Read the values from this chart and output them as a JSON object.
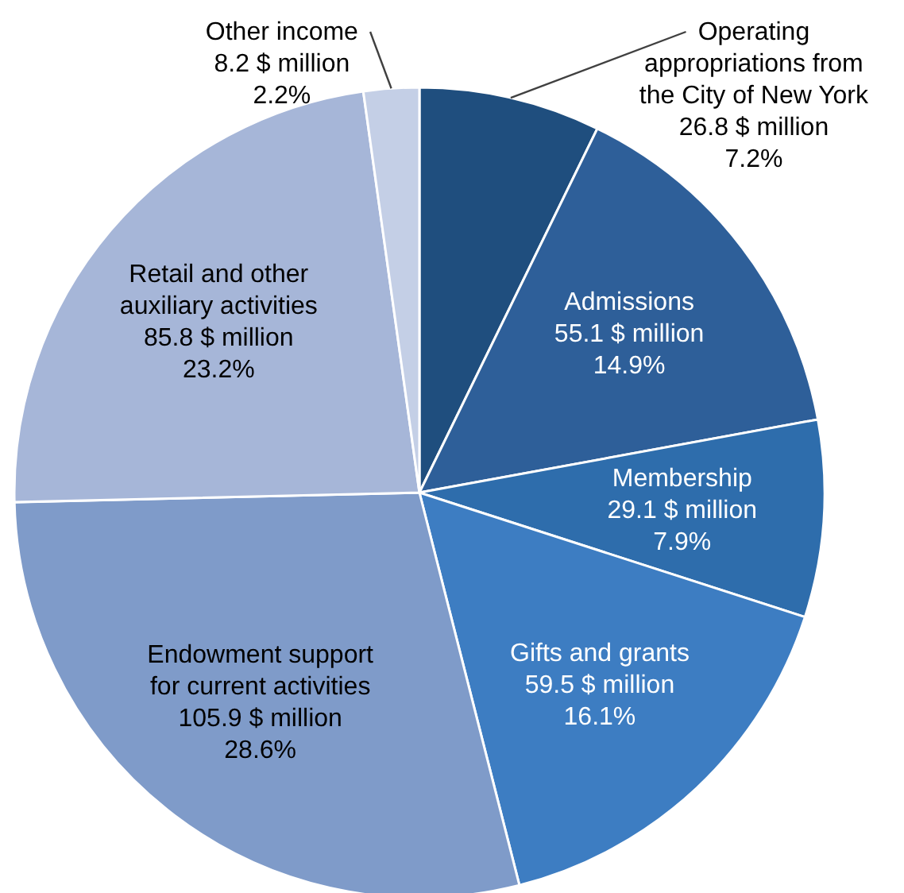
{
  "chart_data": {
    "type": "pie",
    "categories": [
      "Operating\nappropriations from\nthe City of New York",
      "Admissions",
      "Membership",
      "Gifts and grants",
      "Endowment support\nfor current activities",
      "Retail and other\nauxiliary activities",
      "Other income"
    ],
    "values": [
      26.8,
      55.1,
      29.1,
      59.5,
      105.9,
      85.8,
      8.2
    ],
    "value_labels": [
      "26.8 $ million\n7.2%",
      "55.1 $ million\n14.9%",
      "29.1 $ million\n7.9%",
      "59.5 $ million\n16.1%",
      "105.9 $ million\n28.6%",
      "85.8 $ million\n23.2%",
      "8.2 $ million\n2.2%"
    ],
    "colors": [
      "#1f4e7e",
      "#2e5f99",
      "#2e6dac",
      "#3d7dc2",
      "#7f9bc9",
      "#a6b6d8",
      "#c4cfe6"
    ],
    "legend": false
  }
}
